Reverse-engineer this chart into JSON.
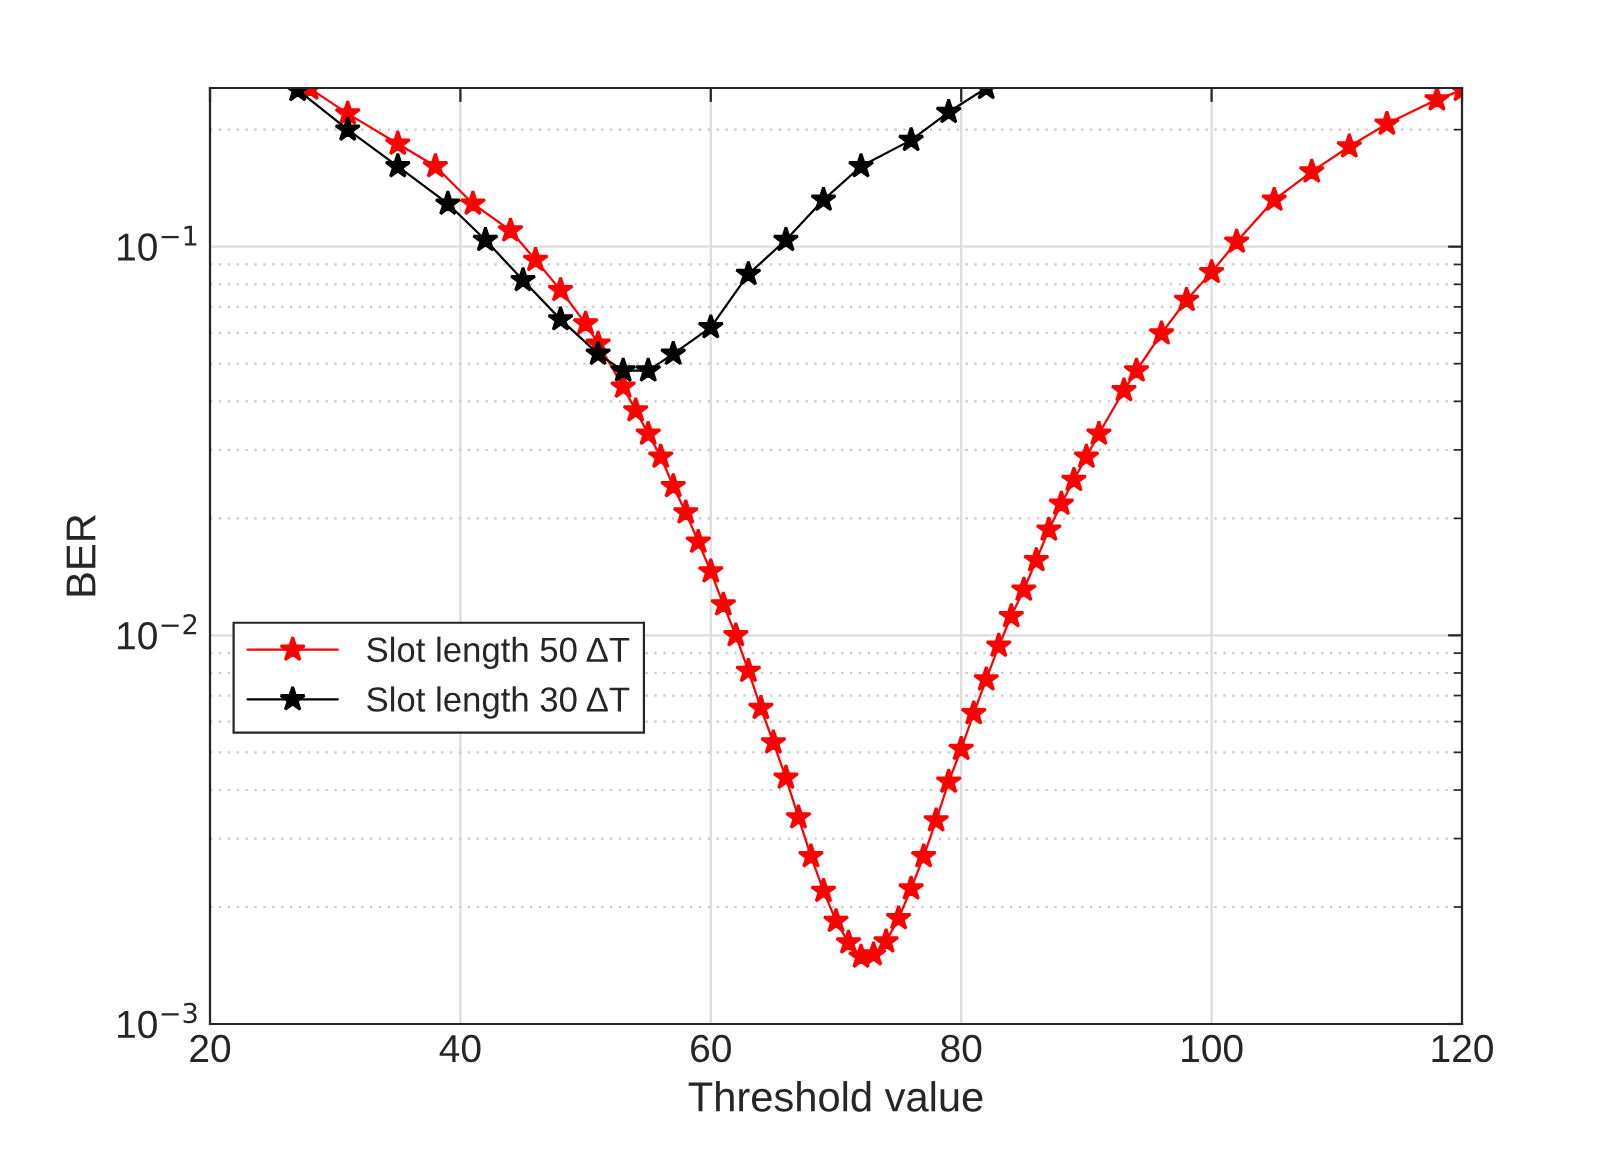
{
  "chart_data": {
    "type": "line",
    "xlabel": "Threshold value",
    "ylabel": "BER",
    "log": "y",
    "xlim": [
      20,
      120
    ],
    "xticks": [
      20,
      40,
      60,
      80,
      100,
      120
    ],
    "ylim": [
      0.001,
      0.256
    ],
    "yticks": [
      {
        "value": 0.001,
        "label": "10$^{−3}$"
      },
      {
        "value": 0.01,
        "label": "10$^{−2}$"
      },
      {
        "value": 0.1,
        "label": "10$^{−1}$"
      }
    ],
    "grid": true,
    "legend": "center left",
    "marker": "star",
    "line_style": "solid",
    "series": [
      {
        "name": "Slot length 50 ΔT",
        "color": "#ff0000",
        "x": [
          28,
          31,
          35,
          38,
          41,
          44,
          46,
          48,
          50,
          51,
          53,
          54,
          55,
          56,
          57,
          58,
          59,
          60,
          61,
          62,
          63,
          64,
          65,
          66,
          67,
          68,
          69,
          70,
          71,
          72,
          73,
          74,
          75,
          76,
          77,
          78,
          79,
          80,
          81,
          82,
          83,
          84,
          85,
          86,
          87,
          88,
          89,
          90,
          91,
          93,
          94,
          96,
          98,
          100,
          102,
          105,
          108,
          111,
          114,
          118,
          120
        ],
        "values": [
          0.255,
          0.22,
          0.184,
          0.161,
          0.129,
          0.11,
          0.0924,
          0.0773,
          0.0634,
          0.0563,
          0.0436,
          0.0379,
          0.033,
          0.0288,
          0.0242,
          0.0207,
          0.0174,
          0.0146,
          0.012,
          0.01,
          0.0081,
          0.0065,
          0.0053,
          0.0043,
          0.0034,
          0.0027,
          0.0022,
          0.00184,
          0.00162,
          0.00149,
          0.00151,
          0.00163,
          0.00187,
          0.00223,
          0.0027,
          0.00334,
          0.0042,
          0.0051,
          0.0063,
          0.0077,
          0.0094,
          0.0112,
          0.0131,
          0.0156,
          0.0187,
          0.0218,
          0.0251,
          0.0288,
          0.033,
          0.0427,
          0.048,
          0.0598,
          0.0729,
          0.086,
          0.103,
          0.132,
          0.156,
          0.181,
          0.207,
          0.239,
          0.253
        ]
      },
      {
        "name": "Slot length 30 ΔT",
        "color": "#000000",
        "x": [
          27,
          31,
          35,
          39,
          42,
          45,
          48,
          51,
          53,
          55,
          57,
          60,
          63,
          66,
          69,
          72,
          76,
          79,
          82
        ],
        "values": [
          0.253,
          0.2,
          0.161,
          0.129,
          0.104,
          0.082,
          0.065,
          0.053,
          0.048,
          0.048,
          0.053,
          0.062,
          0.085,
          0.104,
          0.132,
          0.161,
          0.188,
          0.222,
          0.256
        ]
      }
    ]
  }
}
